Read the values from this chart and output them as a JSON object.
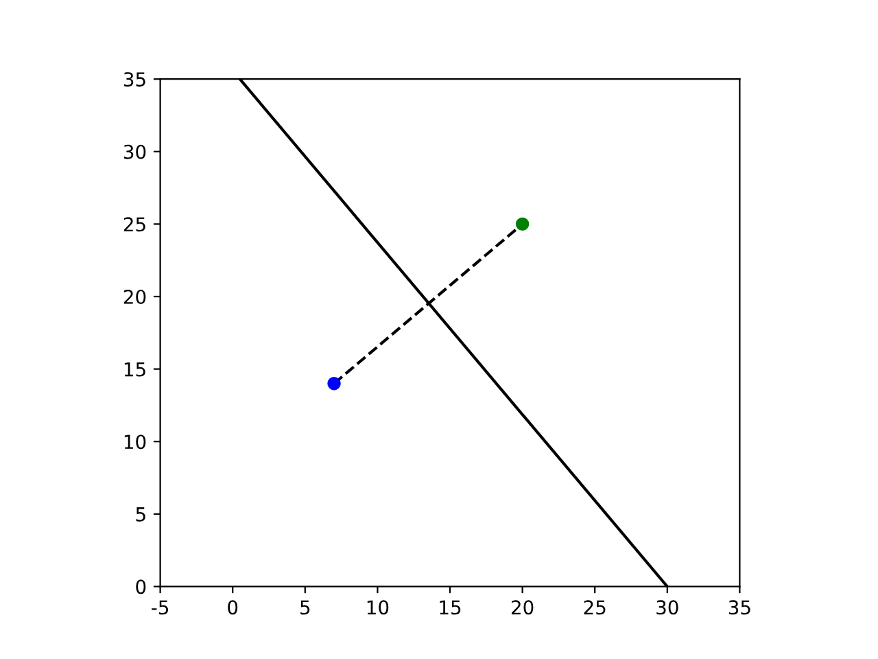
{
  "chart_data": {
    "type": "line",
    "xlim": [
      -5,
      35
    ],
    "ylim": [
      0,
      35
    ],
    "xticks": [
      -5,
      0,
      5,
      10,
      15,
      20,
      25,
      30,
      35
    ],
    "yticks": [
      0,
      5,
      10,
      15,
      20,
      25,
      30,
      35
    ],
    "grid": false,
    "series": [
      {
        "x": [
          0.5,
          30
        ],
        "values": [
          35,
          0
        ],
        "color": "#000000",
        "line_style": "solid",
        "marker": "none"
      },
      {
        "x": [
          7,
          20
        ],
        "values": [
          14,
          25
        ],
        "color": "#000000",
        "line_style": "dashed",
        "marker": "none"
      },
      {
        "type": "scatter",
        "x": [
          7
        ],
        "values": [
          14
        ],
        "color": "#0000ff",
        "marker": "circle"
      },
      {
        "type": "scatter",
        "x": [
          20
        ],
        "values": [
          25
        ],
        "color": "#008000",
        "marker": "circle"
      }
    ]
  }
}
